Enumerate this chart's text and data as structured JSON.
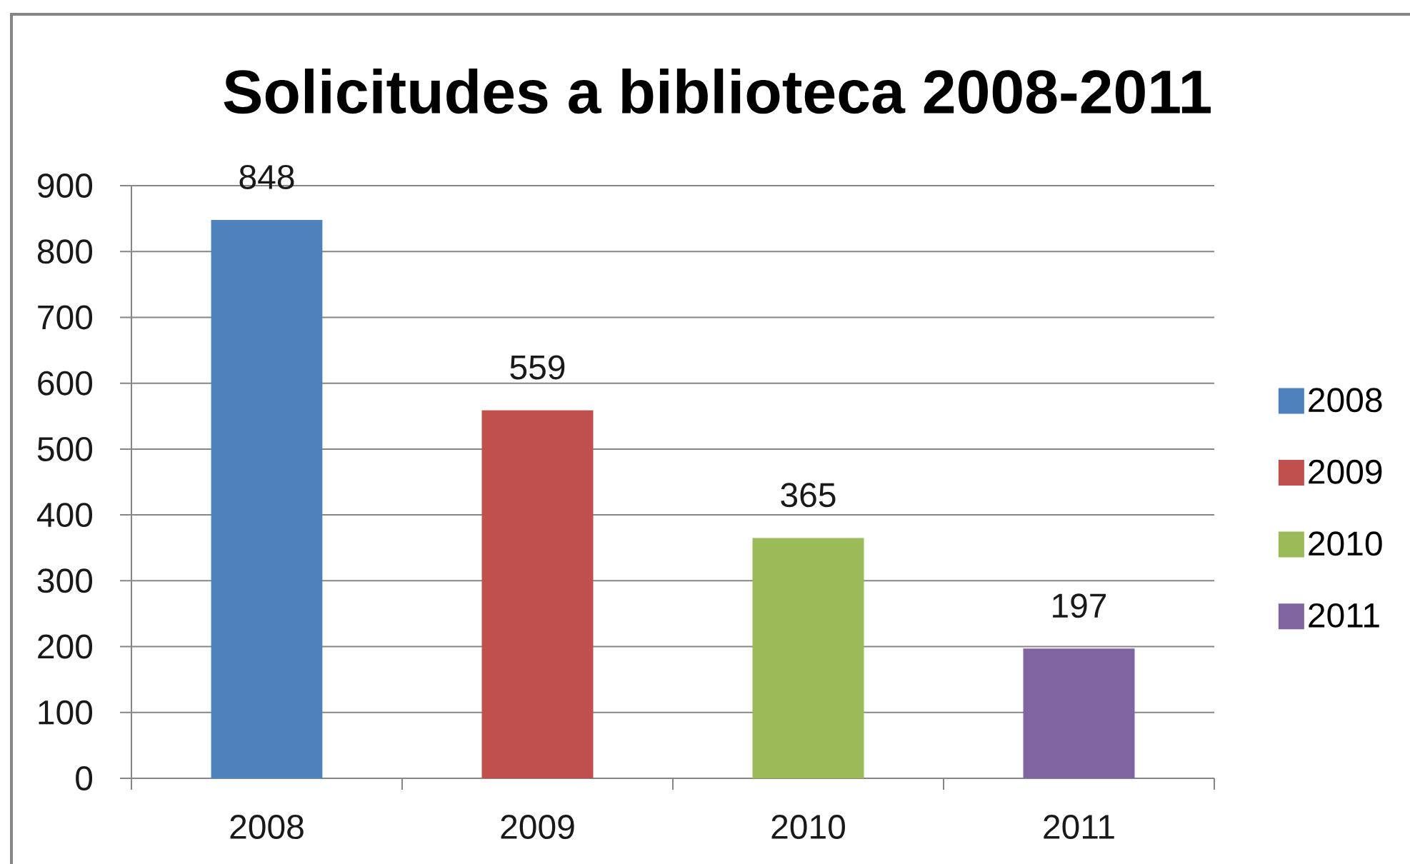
{
  "chart_data": {
    "type": "bar",
    "title": "Solicitudes a biblioteca 2008-2011",
    "categories": [
      "2008",
      "2009",
      "2010",
      "2011"
    ],
    "series": [
      {
        "name": "2008",
        "color": "#4f81bd",
        "values": [
          848,
          null,
          null,
          null
        ]
      },
      {
        "name": "2009",
        "color": "#c0504d",
        "values": [
          null,
          559,
          null,
          null
        ]
      },
      {
        "name": "2010",
        "color": "#9bbb59",
        "values": [
          null,
          null,
          365,
          null
        ]
      },
      {
        "name": "2011",
        "color": "#8064a2",
        "values": [
          null,
          null,
          null,
          197
        ]
      }
    ],
    "ylim": [
      0,
      900
    ],
    "yticks": [
      0,
      100,
      200,
      300,
      400,
      500,
      600,
      700,
      800,
      900
    ],
    "grid": "y",
    "legend": "right",
    "data_labels": true
  }
}
